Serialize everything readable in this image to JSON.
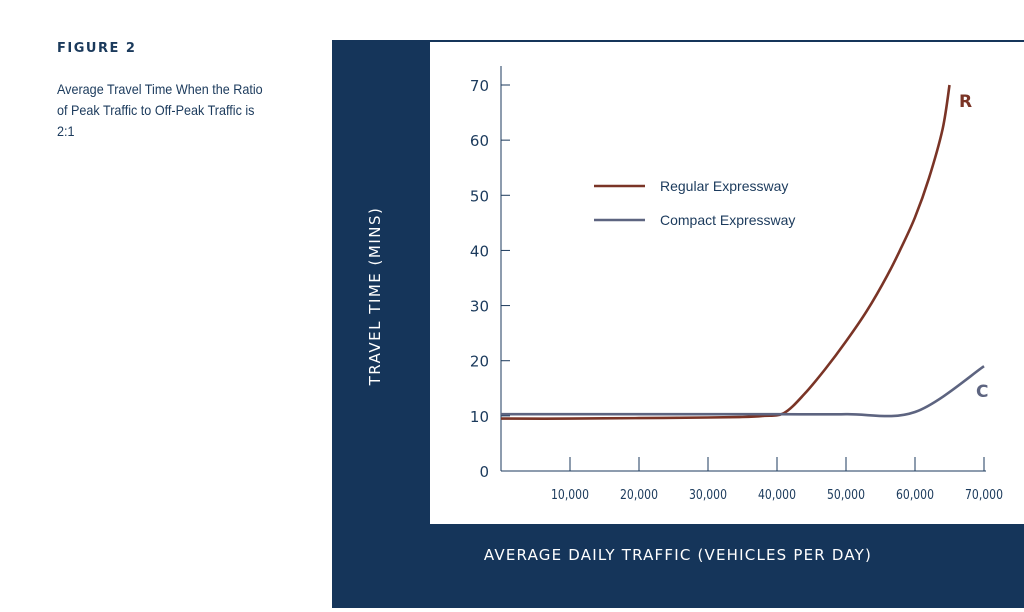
{
  "figure": {
    "label": "FIGURE 2",
    "caption": "Average Travel Time When the Ratio of Peak Traffic to Off-Peak Traffic is 2:1"
  },
  "colors": {
    "panel": "#15355a",
    "regular": "#7a3426",
    "compact": "#5d6480",
    "text": "#1b3a5c"
  },
  "chart_data": {
    "type": "line",
    "xlabel": "AVERAGE DAILY TRAFFIC (VEHICLES PER DAY)",
    "ylabel": "TRAVEL TIME (MINS)",
    "xlim": [
      0,
      70000
    ],
    "ylim": [
      0,
      70
    ],
    "x_ticks": [
      10000,
      20000,
      30000,
      40000,
      50000,
      60000,
      70000
    ],
    "x_tick_labels": [
      "10,000",
      "20,000",
      "30,000",
      "40,000",
      "50,000",
      "60,000",
      "70,000"
    ],
    "y_ticks": [
      0,
      10,
      20,
      30,
      40,
      50,
      60,
      70
    ],
    "y_tick_labels": [
      "0",
      "10",
      "20",
      "30",
      "40",
      "50",
      "60",
      "70"
    ],
    "grid": false,
    "legend": "upper-middle",
    "series": [
      {
        "name": "Regular Expressway",
        "end_label": "R",
        "color": "#7a3426",
        "x": [
          0,
          10000,
          20000,
          30000,
          35000,
          38000,
          41000,
          44000,
          47000,
          50000,
          53000,
          56000,
          58000,
          60000,
          62000,
          64000,
          65000
        ],
        "y": [
          9.5,
          9.5,
          9.6,
          9.7,
          9.8,
          10.0,
          10.5,
          14.0,
          18.5,
          23.5,
          29.0,
          35.5,
          40.5,
          46.0,
          53.0,
          62.0,
          70.0
        ]
      },
      {
        "name": "Compact Expressway",
        "end_label": "C",
        "color": "#5d6480",
        "x": [
          0,
          10000,
          20000,
          30000,
          40000,
          50000,
          60000,
          70000
        ],
        "y": [
          10.3,
          10.3,
          10.3,
          10.3,
          10.3,
          10.3,
          10.7,
          19.0
        ]
      }
    ]
  }
}
